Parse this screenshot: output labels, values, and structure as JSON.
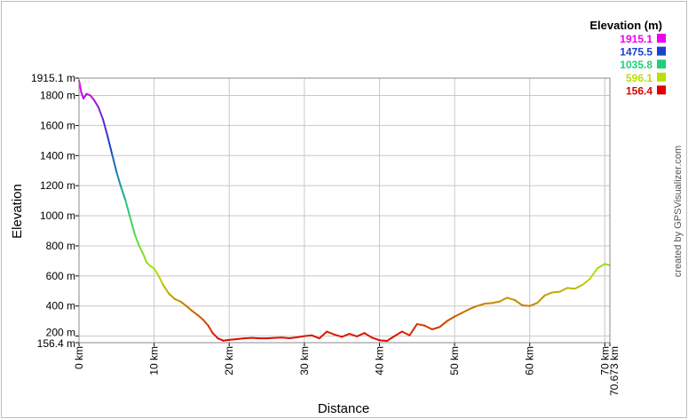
{
  "chart_data": {
    "type": "line",
    "title": "",
    "xlabel": "Distance",
    "ylabel": "Elevation",
    "xlim": [
      0,
      70.673
    ],
    "ylim": [
      156.4,
      1915.1
    ],
    "x_ticks": [
      {
        "value": 0,
        "label": "0 km"
      },
      {
        "value": 10,
        "label": "10 km"
      },
      {
        "value": 20,
        "label": "20 km"
      },
      {
        "value": 30,
        "label": "30 km"
      },
      {
        "value": 40,
        "label": "40 km"
      },
      {
        "value": 50,
        "label": "50 km"
      },
      {
        "value": 60,
        "label": "60 km"
      },
      {
        "value": 70,
        "label": "70 km"
      },
      {
        "value": 70.673,
        "label": "70.673 km"
      }
    ],
    "y_ticks": [
      {
        "value": 156.4,
        "label": "156.4 m"
      },
      {
        "value": 200,
        "label": "200 m"
      },
      {
        "value": 400,
        "label": "400 m"
      },
      {
        "value": 600,
        "label": "600 m"
      },
      {
        "value": 800,
        "label": "800 m"
      },
      {
        "value": 1000,
        "label": "1000 m"
      },
      {
        "value": 1200,
        "label": "1200 m"
      },
      {
        "value": 1400,
        "label": "1400 m"
      },
      {
        "value": 1600,
        "label": "1600 m"
      },
      {
        "value": 1800,
        "label": "1800 m"
      },
      {
        "value": 1915.1,
        "label": "1915.1 m"
      }
    ],
    "grid": true,
    "legend": {
      "title": "Elevation (m)",
      "position": "top-right",
      "entries": [
        {
          "label": "1915.1",
          "color": "#ee00ee"
        },
        {
          "label": "1475.5",
          "color": "#1c3fcf"
        },
        {
          "label": "1035.8",
          "color": "#1fcf7a"
        },
        {
          "label": "596.1",
          "color": "#b8e000"
        },
        {
          "label": "156.4",
          "color": "#dd0000"
        }
      ]
    },
    "series": [
      {
        "x": [
          0,
          0.3,
          0.6,
          1.0,
          1.5,
          2.0,
          2.6,
          3.2,
          3.8,
          4.4,
          5.0,
          5.6,
          6.2,
          6.8,
          7.4,
          8.0,
          8.6,
          9.0,
          9.5,
          10.0,
          10.6,
          11.2,
          12.0,
          12.8,
          13.5,
          14.3,
          15.0,
          15.8,
          16.5,
          17.2,
          17.8,
          18.5,
          19.2,
          20.0,
          21.0,
          22.0,
          23.0,
          24.0,
          25.0,
          26.0,
          27.0,
          28.0,
          29.0,
          30.0,
          31.0,
          32.0,
          33.0,
          34.0,
          35.0,
          36.0,
          37.0,
          38.0,
          39.0,
          40.0,
          41.0,
          42.0,
          43.0,
          44.0,
          45.0,
          46.0,
          47.0,
          48.0,
          49.0,
          50.0,
          51.0,
          52.0,
          53.0,
          54.0,
          55.0,
          56.0,
          57.0,
          58.0,
          59.0,
          60.0,
          61.0,
          62.0,
          63.0,
          64.0,
          65.0,
          66.0,
          67.0,
          68.0,
          69.0,
          70.0,
          70.673
        ],
        "y": [
          1900,
          1820,
          1780,
          1810,
          1800,
          1770,
          1720,
          1640,
          1530,
          1410,
          1290,
          1190,
          1100,
          990,
          880,
          800,
          740,
          690,
          665,
          650,
          600,
          540,
          480,
          445,
          430,
          400,
          370,
          340,
          310,
          270,
          220,
          185,
          170,
          175,
          180,
          185,
          188,
          185,
          185,
          188,
          190,
          186,
          192,
          200,
          205,
          185,
          230,
          210,
          195,
          215,
          198,
          220,
          190,
          172,
          168,
          200,
          230,
          205,
          280,
          270,
          245,
          260,
          300,
          330,
          355,
          380,
          400,
          415,
          420,
          430,
          455,
          440,
          405,
          400,
          420,
          470,
          490,
          495,
          520,
          515,
          540,
          580,
          650,
          680,
          670
        ]
      }
    ]
  },
  "credit": "created by GPSVisualizer.com"
}
